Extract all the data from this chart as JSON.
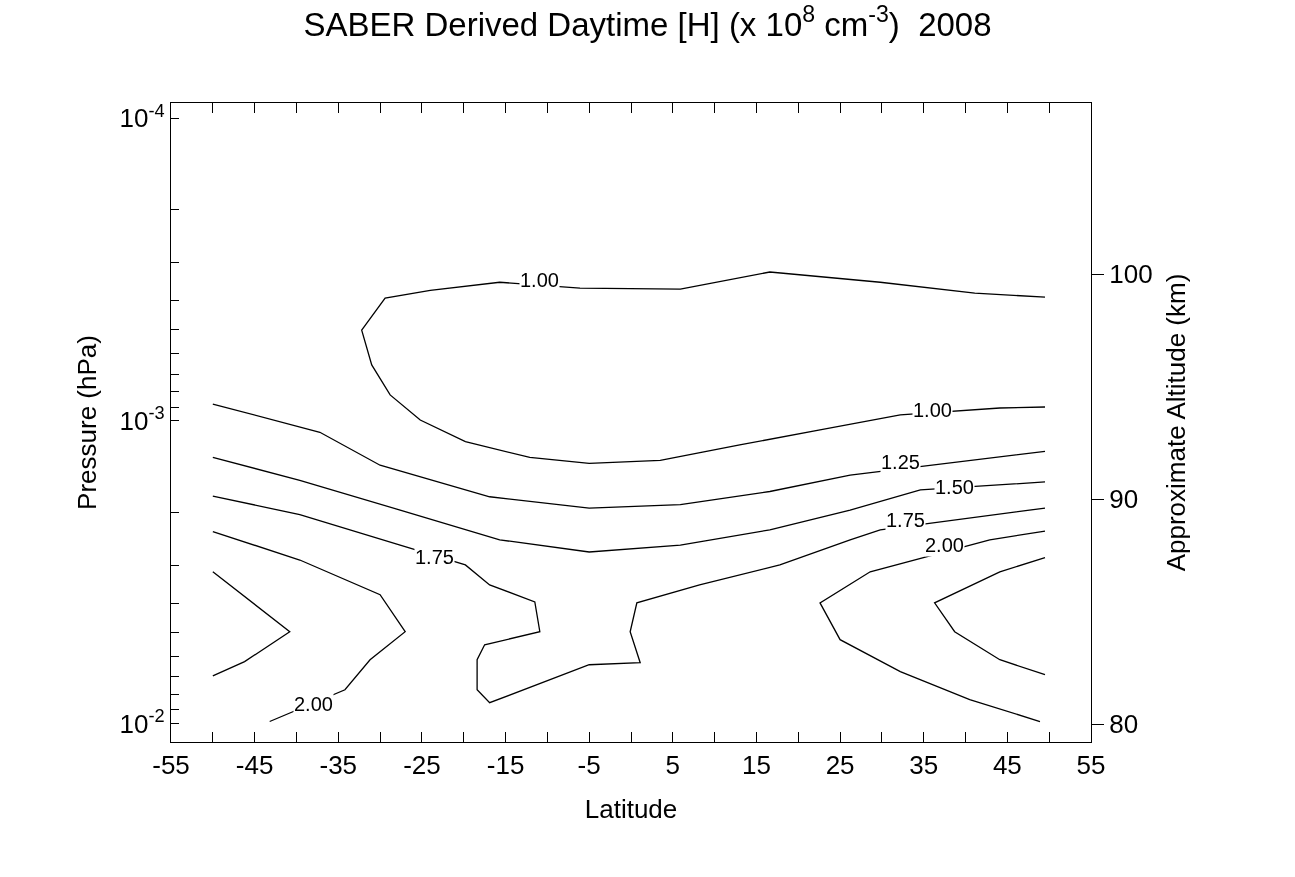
{
  "chart_data": {
    "type": "line",
    "title": "SABER Derived Daytime [H] (x 10$^{8}$ cm$^{-3}$)  2008",
    "xlabel": "Latitude",
    "ylabel": "Pressure (hPa)",
    "y2label": "Approximate Altitude (km)",
    "xlim": [
      -55,
      55
    ],
    "xticks": [
      -55,
      {
        "value": -50,
        "label": null
      },
      -45,
      {
        "value": -40,
        "label": null
      },
      -35,
      {
        "value": -30,
        "label": null
      },
      -25,
      {
        "value": -20,
        "label": null
      },
      -15,
      {
        "value": -10,
        "label": null
      },
      -5,
      {
        "value": 0,
        "label": null
      },
      5,
      {
        "value": 10,
        "label": null
      },
      15,
      {
        "value": 20,
        "label": null
      },
      25,
      {
        "value": 30,
        "label": null
      },
      35,
      {
        "value": 40,
        "label": null
      },
      45,
      {
        "value": 50,
        "label": null
      },
      55
    ],
    "ylim": [
      0.0115,
      8.9e-05
    ],
    "log": "y",
    "yticks": [
      {
        "value": 0.0001,
        "label": "10$^{-4}$"
      },
      {
        "value": 0.0002,
        "label": null
      },
      {
        "value": 0.0003,
        "label": null
      },
      {
        "value": 0.0004,
        "label": null
      },
      {
        "value": 0.0005,
        "label": null
      },
      {
        "value": 0.0006,
        "label": null
      },
      {
        "value": 0.0007,
        "label": null
      },
      {
        "value": 0.0008,
        "label": null
      },
      {
        "value": 0.0009,
        "label": null
      },
      {
        "value": 0.001,
        "label": "10$^{-3}$"
      },
      {
        "value": 0.002,
        "label": null
      },
      {
        "value": 0.003,
        "label": null
      },
      {
        "value": 0.004,
        "label": null
      },
      {
        "value": 0.005,
        "label": null
      },
      {
        "value": 0.006,
        "label": null
      },
      {
        "value": 0.007,
        "label": null
      },
      {
        "value": 0.008,
        "label": null
      },
      {
        "value": 0.009,
        "label": null
      },
      {
        "value": 0.01,
        "label": "10$^{-2}$"
      }
    ],
    "y2lim": [
      79.2,
      107.6
    ],
    "y2ticks": [
      80,
      90,
      100
    ],
    "marker": "none",
    "line_style": "solid",
    "series": [
      {
        "color": "#000000",
        "x": [
          49.5,
          41.1,
          29.8,
          16.6,
          5.9,
          -6.1,
          -15.7,
          -24,
          -29.4,
          -32.2,
          -31,
          -28.8,
          -25.2,
          -19.8,
          -12.1,
          -5,
          3.5,
          13,
          22.6,
          32.2,
          44.1,
          49.5
        ],
        "values": [
          0.00039,
          0.000378,
          0.000348,
          0.000322,
          0.000367,
          0.000364,
          0.000348,
          0.00037,
          0.000393,
          0.000501,
          0.000653,
          0.00082,
          0.000993,
          0.00117,
          0.00132,
          0.00138,
          0.00135,
          0.0012,
          0.00107,
          0.000955,
          0.000906,
          0.000899
        ]
      },
      {
        "color": "#000000",
        "x": [
          -50,
          -37.2,
          -30,
          -16.9,
          -5,
          5.9,
          16.6,
          26.2,
          49.5
        ],
        "values": [
          0.000879,
          0.00109,
          0.0014,
          0.00178,
          0.00194,
          0.00189,
          0.00171,
          0.00151,
          0.00126
        ]
      },
      {
        "color": "#000000",
        "x": [
          -50,
          -39.6,
          -27.6,
          -15.7,
          -5,
          5.9,
          16.6,
          26.2,
          34.6,
          49.5
        ],
        "values": [
          0.00132,
          0.00157,
          0.00197,
          0.00247,
          0.00271,
          0.00257,
          0.00229,
          0.00197,
          0.00169,
          0.00159
        ]
      },
      {
        "color": "#000000",
        "x": [
          -50,
          -39.6,
          -27.6,
          -19.8,
          -16.9,
          -11.5,
          -10.9,
          -17.5,
          -18.4,
          -18.4,
          -16.9,
          -5,
          1.1,
          -0.1,
          0.7,
          8.2,
          17.8,
          26.2,
          29.8,
          49.5
        ],
        "values": [
          0.00177,
          0.00204,
          0.00257,
          0.00299,
          0.00348,
          0.00396,
          0.00497,
          0.00549,
          0.00615,
          0.00773,
          0.00853,
          0.00639,
          0.00629,
          0.00497,
          0.00399,
          0.00348,
          0.00299,
          0.00247,
          0.00229,
          0.00194
        ]
      },
      {
        "color": "#000000",
        "x": [
          -50,
          -39.6,
          -30,
          -27,
          -31.2,
          -34.2,
          -43.2
        ],
        "values": [
          0.00232,
          0.00288,
          0.00375,
          0.00497,
          0.00615,
          0.00773,
          0.00984
        ]
      },
      {
        "color": "#000000",
        "x": [
          -50,
          -40.8,
          -46.2,
          -50
        ],
        "values": [
          0.00315,
          0.00497,
          0.00624,
          0.00695
        ]
      },
      {
        "color": "#000000",
        "x": [
          49.5,
          42.9,
          28.6,
          22.6,
          25,
          32.2,
          40.5,
          48.9
        ],
        "values": [
          0.00231,
          0.00247,
          0.00315,
          0.00399,
          0.00528,
          0.00673,
          0.00833,
          0.00984
        ]
      },
      {
        "color": "#000000",
        "x": [
          49.5,
          44.1,
          36.3,
          38.7,
          44.1,
          49.5
        ],
        "values": [
          0.00283,
          0.00315,
          0.00399,
          0.00497,
          0.00615,
          0.00689
        ]
      }
    ],
    "annotations": [
      {
        "text": "1.00",
        "x": -10.9,
        "y": 0.000343
      },
      {
        "text": "1.00",
        "x": 36.0,
        "y": 0.00092
      },
      {
        "text": "1.25",
        "x": 32.2,
        "y": 0.00137
      },
      {
        "text": "1.50",
        "x": 38.7,
        "y": 0.00165
      },
      {
        "text": "1.75",
        "x": -23.5,
        "y": 0.00282
      },
      {
        "text": "1.75",
        "x": 32.8,
        "y": 0.00212
      },
      {
        "text": "2.00",
        "x": 37.5,
        "y": 0.00257
      },
      {
        "text": "2.00",
        "x": -38.0,
        "y": 0.0086
      }
    ]
  }
}
